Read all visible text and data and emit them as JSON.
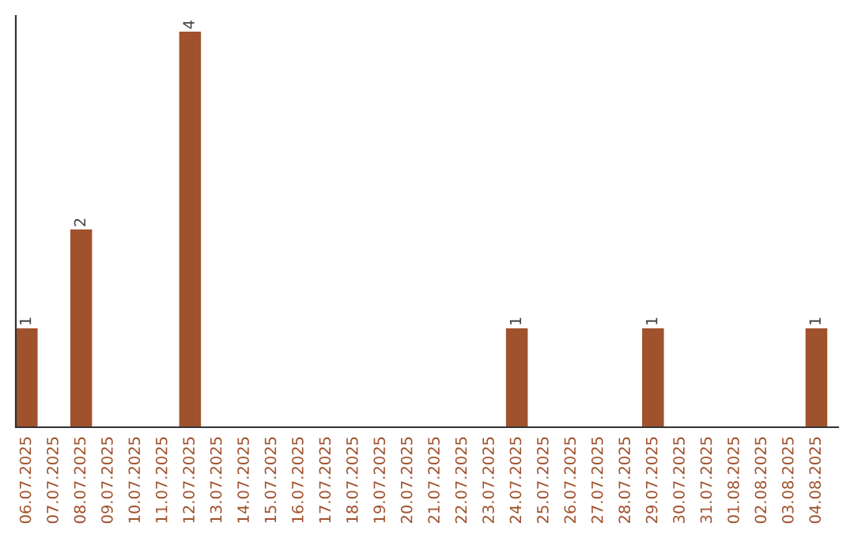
{
  "chart_data": {
    "type": "bar",
    "categories": [
      "06.07.2025",
      "07.07.2025",
      "08.07.2025",
      "09.07.2025",
      "10.07.2025",
      "11.07.2025",
      "12.07.2025",
      "13.07.2025",
      "14.07.2025",
      "15.07.2025",
      "16.07.2025",
      "17.07.2025",
      "18.07.2025",
      "19.07.2025",
      "20.07.2025",
      "21.07.2025",
      "22.07.2025",
      "23.07.2025",
      "24.07.2025",
      "25.07.2025",
      "26.07.2025",
      "27.07.2025",
      "28.07.2025",
      "29.07.2025",
      "30.07.2025",
      "31.07.2025",
      "01.08.2025",
      "02.08.2025",
      "03.08.2025",
      "04.08.2025"
    ],
    "values": [
      1,
      0,
      2,
      0,
      0,
      0,
      4,
      0,
      0,
      0,
      0,
      0,
      0,
      0,
      0,
      0,
      0,
      0,
      1,
      0,
      0,
      0,
      0,
      1,
      0,
      0,
      0,
      0,
      0,
      1
    ],
    "value_labels": [
      "1",
      null,
      "2",
      null,
      null,
      null,
      "4",
      null,
      null,
      null,
      null,
      null,
      null,
      null,
      null,
      null,
      null,
      null,
      "1",
      null,
      null,
      null,
      null,
      "1",
      null,
      null,
      null,
      null,
      null,
      "1"
    ],
    "color": "#a0522d",
    "tick_labels": "x",
    "grid": false,
    "legend": false
  }
}
